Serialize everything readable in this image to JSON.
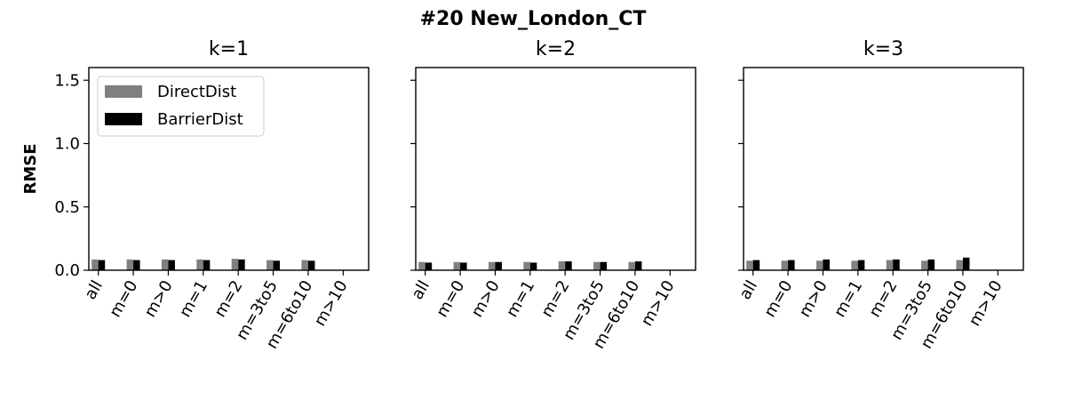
{
  "figure": {
    "title": "#20 New_London_CT",
    "ylabel": "RMSE"
  },
  "legend": {
    "placement": "upper-left",
    "entries": [
      {
        "label": "DirectDist",
        "color": "#808080"
      },
      {
        "label": "BarrierDist",
        "color": "#000000"
      }
    ]
  },
  "chart_data": [
    {
      "type": "bar",
      "title": "k=1",
      "categories": [
        "all",
        "m=0",
        "m>0",
        "m=1",
        "m=2",
        "m=3to5",
        "m=6to10",
        "m>10"
      ],
      "ylim": [
        0,
        1.6
      ],
      "yticks": [
        "0.0",
        "0.5",
        "1.0",
        "1.5"
      ],
      "series": [
        {
          "name": "DirectDist",
          "color": "#808080",
          "values": [
            0.085,
            0.085,
            0.085,
            0.085,
            0.09,
            0.08,
            0.08,
            null
          ]
        },
        {
          "name": "BarrierDist",
          "color": "#000000",
          "values": [
            0.08,
            0.08,
            0.08,
            0.08,
            0.085,
            0.075,
            0.075,
            null
          ]
        }
      ]
    },
    {
      "type": "bar",
      "title": "k=2",
      "categories": [
        "all",
        "m=0",
        "m>0",
        "m=1",
        "m=2",
        "m=3to5",
        "m=6to10",
        "m>10"
      ],
      "ylim": [
        0,
        1.6
      ],
      "yticks": [
        "0.0",
        "0.5",
        "1.0",
        "1.5"
      ],
      "series": [
        {
          "name": "DirectDist",
          "color": "#808080",
          "values": [
            0.065,
            0.065,
            0.065,
            0.065,
            0.07,
            0.065,
            0.065,
            null
          ]
        },
        {
          "name": "BarrierDist",
          "color": "#000000",
          "values": [
            0.06,
            0.06,
            0.065,
            0.06,
            0.07,
            0.065,
            0.07,
            null
          ]
        }
      ]
    },
    {
      "type": "bar",
      "title": "k=3",
      "categories": [
        "all",
        "m=0",
        "m>0",
        "m=1",
        "m=2",
        "m=3to5",
        "m=6to10",
        "m>10"
      ],
      "ylim": [
        0,
        1.6
      ],
      "yticks": [
        "0.0",
        "0.5",
        "1.0",
        "1.5"
      ],
      "series": [
        {
          "name": "DirectDist",
          "color": "#808080",
          "values": [
            0.075,
            0.075,
            0.075,
            0.075,
            0.08,
            0.075,
            0.08,
            null
          ]
        },
        {
          "name": "BarrierDist",
          "color": "#000000",
          "values": [
            0.08,
            0.08,
            0.085,
            0.08,
            0.085,
            0.085,
            0.1,
            null
          ]
        }
      ]
    }
  ]
}
